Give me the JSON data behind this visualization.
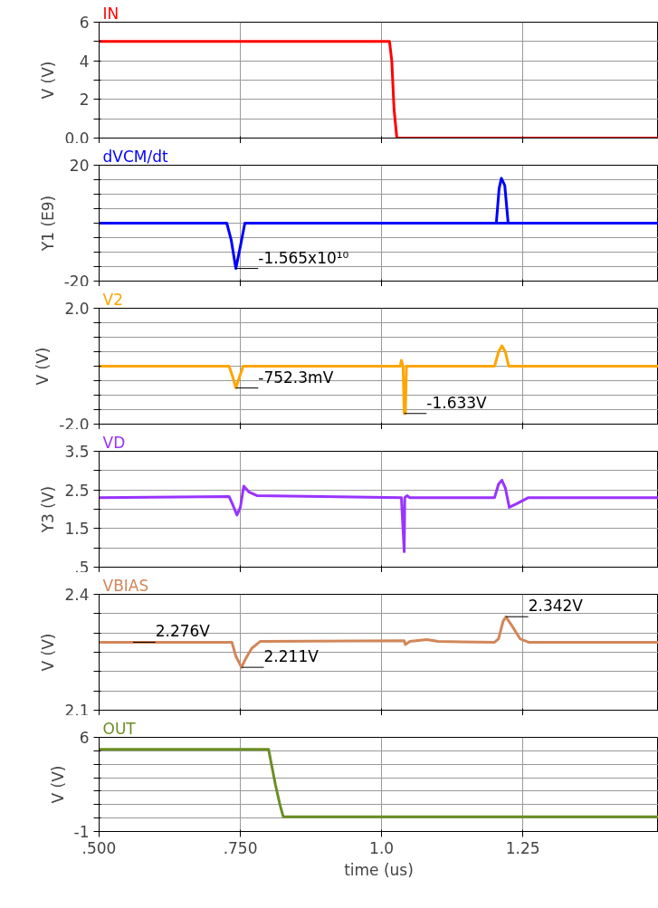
{
  "chart_data": [
    {
      "type": "line",
      "x": [
        0.5,
        1.014,
        1.018,
        1.022,
        1.027,
        1.49
      ],
      "series": [
        {
          "name": "IN",
          "color": "#ff0000",
          "values": [
            5,
            5,
            4,
            1.5,
            0,
            0
          ]
        }
      ],
      "xlim": [
        0.5,
        1.49
      ],
      "xticks": [
        0.5,
        0.75,
        1.0,
        1.25
      ],
      "ylim": [
        0,
        6
      ],
      "yticks": [
        {
          "value": 0,
          "label": "0.0"
        },
        {
          "value": 1,
          "label": null
        },
        2,
        {
          "value": 3,
          "label": null
        },
        4,
        {
          "value": 5,
          "label": null
        },
        6
      ],
      "ylabel": "V (V)",
      "grid": true,
      "tick_labels": "y"
    },
    {
      "type": "line",
      "x": [
        0.5,
        0.726,
        0.734,
        0.742,
        0.75,
        0.758,
        1.49
      ],
      "series": [
        {
          "name": "dVCM/dt",
          "color": "#0000ff",
          "values": [
            0,
            0,
            -6,
            -15.65,
            -8,
            0,
            0
          ]
        },
        {
          "color": "#0000ff",
          "x": [
            1.203,
            1.208,
            1.212,
            1.218,
            1.224,
            1.49
          ],
          "values": [
            0,
            12,
            15.5,
            13,
            0,
            0
          ]
        }
      ],
      "xlim": [
        0.5,
        1.49
      ],
      "xticks": [
        0.5,
        0.75,
        1.0,
        1.25
      ],
      "ylim": [
        -20,
        20
      ],
      "yticks": [
        -20,
        {
          "value": -15,
          "label": null
        },
        {
          "value": -10,
          "label": null
        },
        {
          "value": -5,
          "label": null
        },
        {
          "value": 0,
          "label": null
        },
        {
          "value": 5,
          "label": null
        },
        {
          "value": 10,
          "label": null
        },
        {
          "value": 15,
          "label": null
        },
        20
      ],
      "ylabel": "Y1 (E9)",
      "grid": true,
      "tick_labels": "y",
      "annotations": [
        {
          "text": "-1.565x10¹⁰",
          "x": 0.742,
          "y": -15.65
        }
      ]
    },
    {
      "type": "line",
      "x": [
        0.5,
        0.73,
        0.737,
        0.742,
        0.748,
        0.755,
        1.033,
        1.035,
        1.038,
        1.04,
        1.042,
        1.044,
        1.2,
        1.207,
        1.213,
        1.219,
        1.225,
        1.49
      ],
      "series": [
        {
          "name": "V2",
          "color": "#ffa500",
          "values": [
            0,
            0,
            -0.4,
            -0.7523,
            -0.4,
            0,
            0,
            0.2,
            0,
            -1.633,
            -1.633,
            0,
            0,
            0.5,
            0.7,
            0.5,
            0,
            0
          ]
        }
      ],
      "xlim": [
        0.5,
        1.49
      ],
      "xticks": [
        0.5,
        0.75,
        1.0,
        1.25
      ],
      "ylim": [
        -2,
        2
      ],
      "yticks": [
        {
          "value": -2,
          "label": "-2.0"
        },
        {
          "value": -1.5,
          "label": null
        },
        {
          "value": -1,
          "label": null
        },
        {
          "value": -0.5,
          "label": null
        },
        {
          "value": 0,
          "label": null
        },
        {
          "value": 0.5,
          "label": null
        },
        {
          "value": 1,
          "label": null
        },
        {
          "value": 1.5,
          "label": null
        },
        {
          "value": 2,
          "label": "2.0"
        }
      ],
      "ylabel": "V (V)",
      "grid": true,
      "tick_labels": "y",
      "annotations": [
        {
          "text": "-752.3mV",
          "x": 0.742,
          "y": -0.7523
        },
        {
          "text": "-1.633V",
          "x": 1.04,
          "y": -1.633
        }
      ]
    },
    {
      "type": "line",
      "x": [
        0.5,
        0.73,
        0.737,
        0.744,
        0.75,
        0.756,
        0.765,
        0.78,
        1.035,
        1.04,
        1.041,
        1.045,
        1.05,
        1.2,
        1.207,
        1.213,
        1.219,
        1.226,
        1.24,
        1.26,
        1.49
      ],
      "series": [
        {
          "name": "VD",
          "color": "#9933ff",
          "values": [
            2.3,
            2.33,
            2.1,
            1.85,
            2.05,
            2.6,
            2.45,
            2.35,
            2.3,
            0.9,
            2.3,
            2.35,
            2.3,
            2.3,
            2.65,
            2.75,
            2.55,
            2.05,
            2.15,
            2.3,
            2.3
          ]
        }
      ],
      "xlim": [
        0.5,
        1.49
      ],
      "xticks": [
        0.5,
        0.75,
        1.0,
        1.25
      ],
      "ylim": [
        0.5,
        3.5
      ],
      "yticks": [
        {
          "value": 0.5,
          "label": ".5"
        },
        {
          "value": 1,
          "label": null
        },
        1.5,
        {
          "value": 2,
          "label": null
        },
        2.5,
        {
          "value": 3,
          "label": null
        },
        3.5
      ],
      "ylabel": "Y3 (V)",
      "grid": true,
      "tick_labels": "y"
    },
    {
      "type": "line",
      "x": [
        0.5,
        0.735,
        0.742,
        0.752,
        0.76,
        0.77,
        0.785,
        1.04,
        1.042,
        1.05,
        1.08,
        1.1,
        1.2,
        1.207,
        1.215,
        1.22,
        1.23,
        1.245,
        1.26,
        1.49
      ],
      "series": [
        {
          "name": "VBIAS",
          "color": "#d2875a",
          "values": [
            2.276,
            2.276,
            2.24,
            2.211,
            2.235,
            2.26,
            2.278,
            2.28,
            2.27,
            2.278,
            2.283,
            2.278,
            2.276,
            2.285,
            2.33,
            2.342,
            2.32,
            2.285,
            2.276,
            2.276
          ]
        }
      ],
      "xlim": [
        0.5,
        1.49
      ],
      "xticks": [
        0.5,
        0.75,
        1.0,
        1.25
      ],
      "ylim": [
        2.1,
        2.4
      ],
      "yticks": [
        2.1,
        {
          "value": 2.15,
          "label": null
        },
        {
          "value": 2.2,
          "label": null
        },
        {
          "value": 2.25,
          "label": null
        },
        {
          "value": 2.3,
          "label": null
        },
        {
          "value": 2.35,
          "label": null
        },
        2.4
      ],
      "ylabel": "V (V)",
      "grid": true,
      "tick_labels": "y",
      "annotations": [
        {
          "text": "2.276V",
          "x": 0.56,
          "y": 2.276
        },
        {
          "text": "2.211V",
          "x": 0.752,
          "y": 2.211
        },
        {
          "text": "2.342V",
          "x": 1.22,
          "y": 2.342
        }
      ]
    },
    {
      "type": "line",
      "x": [
        0.5,
        0.8,
        0.805,
        0.812,
        0.82,
        0.826,
        1.49
      ],
      "series": [
        {
          "name": "OUT",
          "color": "#6b8e23",
          "values": [
            5.1,
            5.1,
            4,
            2.5,
            1,
            0.1,
            0.1
          ]
        }
      ],
      "xlim": [
        0.5,
        1.49
      ],
      "xticks": [
        {
          "value": 0.5,
          "label": ".500"
        },
        {
          "value": 0.75,
          "label": ".750"
        },
        {
          "value": 1.0,
          "label": "1.0"
        },
        {
          "value": 1.25,
          "label": "1.25"
        }
      ],
      "ylim": [
        -1,
        6
      ],
      "yticks": [
        -1,
        {
          "value": 0,
          "label": null
        },
        {
          "value": 1,
          "label": null
        },
        {
          "value": 2,
          "label": null
        },
        {
          "value": 3,
          "label": null
        },
        {
          "value": 4,
          "label": null
        },
        {
          "value": 5,
          "label": null
        },
        6
      ],
      "ylabel": "V (V)",
      "xlabel": "time (us)",
      "grid": true
    }
  ]
}
